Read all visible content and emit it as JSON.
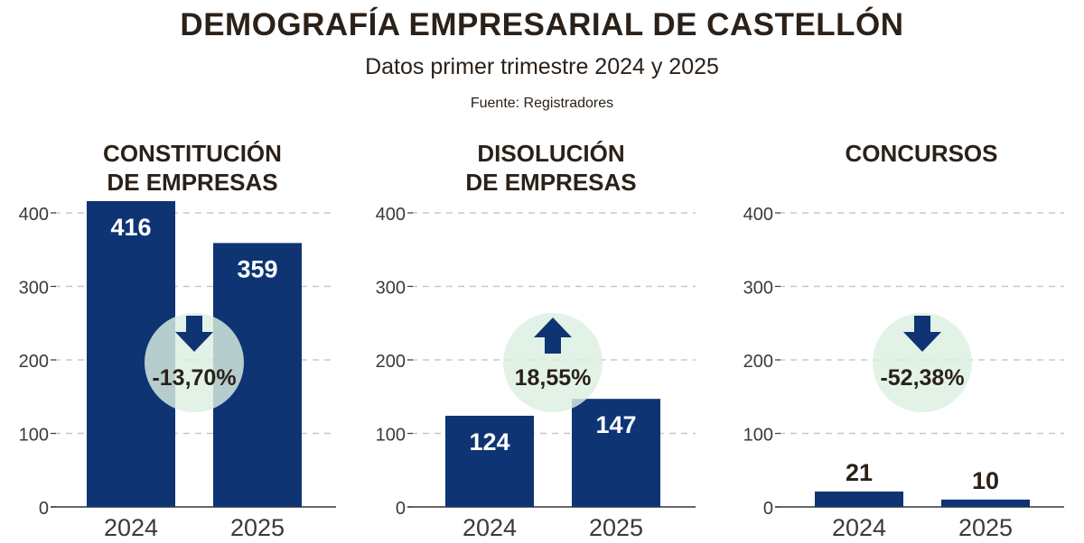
{
  "header": {
    "title": "DEMOGRAFÍA EMPRESARIAL DE CASTELLÓN",
    "subtitle": "Datos primer trimestre 2024 y 2025",
    "source": "Fuente: Registradores"
  },
  "colors": {
    "bar": "#0e3474",
    "bubble": "#dcefe1",
    "arrow": "#0e3474",
    "text": "#2b2118",
    "grid": "#c8c8c8",
    "axis_text": "#3a3a3a"
  },
  "chart_data": [
    {
      "type": "bar",
      "title_line1": "CONSTITUCIÓN",
      "title_line2": "DE EMPRESAS",
      "categories": [
        "2024",
        "2025"
      ],
      "values": [
        416,
        359
      ],
      "value_labels": [
        "416",
        "359"
      ],
      "yticks": [
        0,
        100,
        200,
        300,
        400
      ],
      "ylim": [
        0,
        420
      ],
      "change": "-13,70%",
      "direction": "down"
    },
    {
      "type": "bar",
      "title_line1": "DISOLUCIÓN",
      "title_line2": "DE EMPRESAS",
      "categories": [
        "2024",
        "2025"
      ],
      "values": [
        124,
        147
      ],
      "value_labels": [
        "124",
        "147"
      ],
      "yticks": [
        0,
        100,
        200,
        300,
        400
      ],
      "ylim": [
        0,
        420
      ],
      "change": "18,55%",
      "direction": "up"
    },
    {
      "type": "bar",
      "title_line1": "CONCURSOS",
      "title_line2": "",
      "categories": [
        "2024",
        "2025"
      ],
      "values": [
        21,
        10
      ],
      "value_labels": [
        "21",
        "10"
      ],
      "yticks": [
        0,
        100,
        200,
        300,
        400
      ],
      "ylim": [
        0,
        420
      ],
      "change": "-52,38%",
      "direction": "down"
    }
  ]
}
